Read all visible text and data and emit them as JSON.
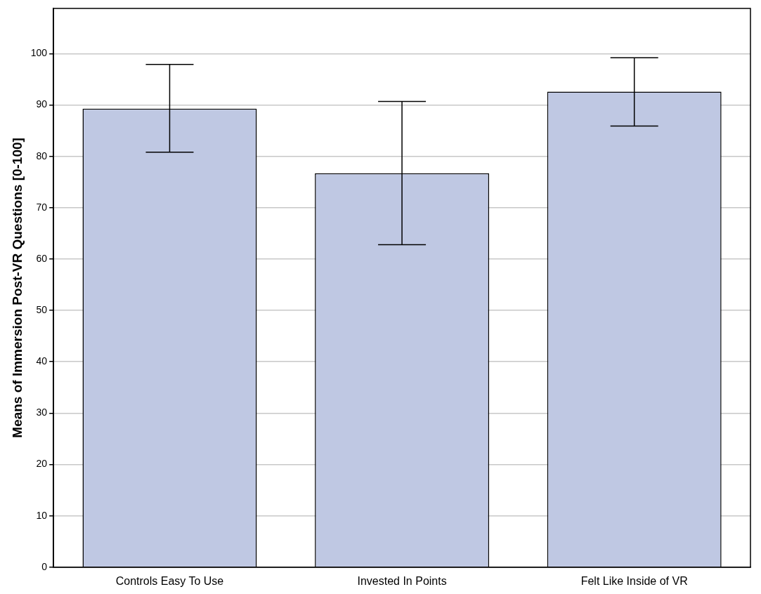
{
  "chart_data": {
    "type": "bar",
    "ylabel": "Means of Immersion Post-VR Questions [0-100]",
    "categories": [
      "Controls Easy To Use",
      "Invested In Points",
      "Felt Like Inside of VR"
    ],
    "values": [
      89.3,
      76.7,
      92.6
    ],
    "errors": [
      [
        80.8,
        97.9
      ],
      [
        62.8,
        90.7
      ],
      [
        85.9,
        99.2
      ]
    ],
    "color": "#bfc8e3",
    "ylim": [
      0,
      108.8
    ],
    "yticks": [
      0,
      10,
      20,
      30,
      40,
      50,
      60,
      70,
      80,
      90,
      100
    ],
    "grid": "y",
    "legend": false
  }
}
